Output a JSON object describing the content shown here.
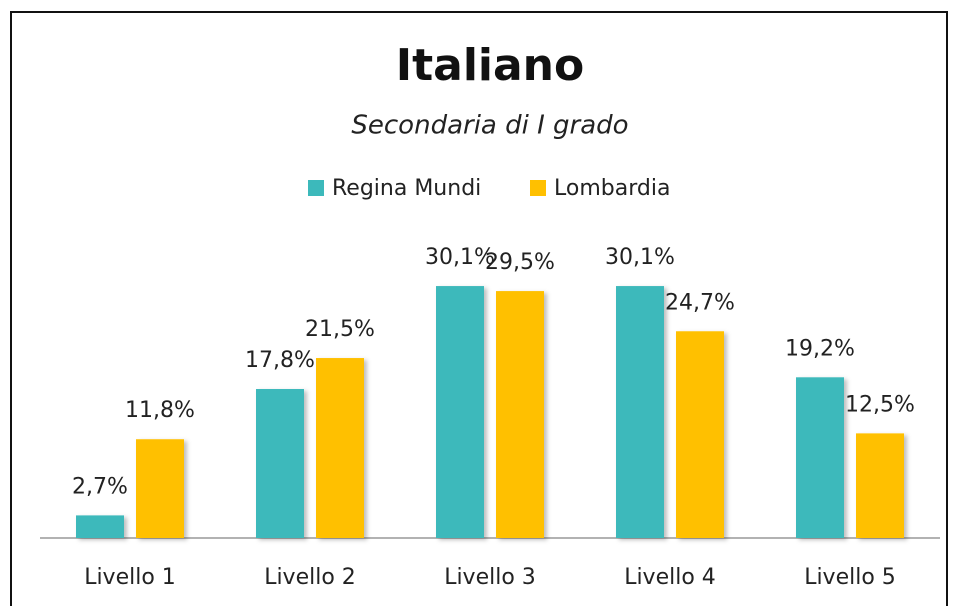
{
  "chart_data": {
    "type": "bar",
    "title": "Italiano",
    "subtitle": "Secondaria di I grado",
    "categories": [
      "Livello 1",
      "Livello 2",
      "Livello 3",
      "Livello 4",
      "Livello 5"
    ],
    "series": [
      {
        "name": "Regina Mundi",
        "color": "#3cb9bb",
        "values": [
          2.7,
          17.8,
          30.1,
          30.1,
          19.2
        ],
        "value_labels": [
          "2,7%",
          "17,8%",
          "30,1%",
          "30,1%",
          "19,2%"
        ]
      },
      {
        "name": "Lombardia",
        "color": "#ffc000",
        "values": [
          11.8,
          21.5,
          29.5,
          24.7,
          12.5
        ],
        "value_labels": [
          "11,8%",
          "21,5%",
          "29,5%",
          "24,7%",
          "12,5%"
        ]
      }
    ],
    "legend": "top"
  }
}
